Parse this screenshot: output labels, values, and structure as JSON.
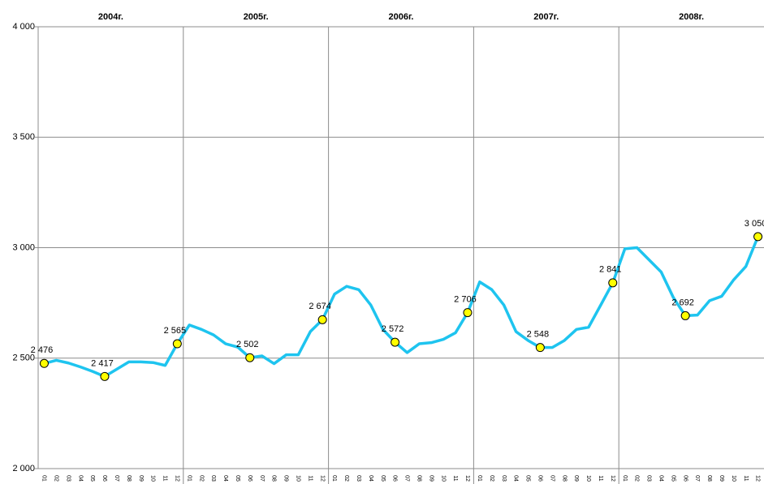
{
  "chart_data": {
    "type": "line",
    "groups": [
      "2004г.",
      "2005г.",
      "2006г.",
      "2007г.",
      "2008г."
    ],
    "categories": [
      "01",
      "02",
      "03",
      "04",
      "05",
      "06",
      "07",
      "08",
      "09",
      "10",
      "11",
      "12",
      "01",
      "02",
      "03",
      "04",
      "05",
      "06",
      "07",
      "08",
      "09",
      "10",
      "11",
      "12",
      "01",
      "02",
      "03",
      "04",
      "05",
      "06",
      "07",
      "08",
      "09",
      "10",
      "11",
      "12",
      "01",
      "02",
      "03",
      "04",
      "05",
      "06",
      "07",
      "08",
      "09",
      "10",
      "11",
      "12",
      "01",
      "02",
      "03",
      "04",
      "05",
      "06",
      "07",
      "08",
      "09",
      "10",
      "11",
      "12"
    ],
    "series": [
      {
        "color": "#1ec4ef",
        "marker_color": "#ffff00",
        "values": [
          2476,
          2490,
          2478,
          2460,
          2440,
          2417,
          2450,
          2483,
          2483,
          2480,
          2467,
          2565,
          2650,
          2630,
          2605,
          2565,
          2550,
          2502,
          2510,
          2475,
          2515,
          2515,
          2620,
          2674,
          2790,
          2825,
          2810,
          2740,
          2630,
          2572,
          2525,
          2565,
          2570,
          2585,
          2615,
          2706,
          2845,
          2810,
          2740,
          2620,
          2580,
          2548,
          2548,
          2580,
          2630,
          2640,
          2740,
          2841,
          2995,
          3000,
          2945,
          2890,
          2775,
          2692,
          2695,
          2760,
          2780,
          2855,
          2915,
          3050
        ],
        "value_labels": [
          "2 476",
          null,
          null,
          null,
          null,
          "2 417",
          null,
          null,
          null,
          null,
          null,
          "2 565",
          null,
          null,
          null,
          null,
          null,
          "2 502",
          null,
          null,
          null,
          null,
          null,
          "2 674",
          null,
          null,
          null,
          null,
          null,
          "2 572",
          null,
          null,
          null,
          null,
          null,
          "2 706",
          null,
          null,
          null,
          null,
          null,
          "2 548",
          null,
          null,
          null,
          null,
          null,
          "2 841",
          null,
          null,
          null,
          null,
          null,
          "2 692",
          null,
          null,
          null,
          null,
          null,
          "3 050"
        ]
      }
    ],
    "ylim": [
      2000,
      4000
    ],
    "yticks": [
      {
        "value": 2000,
        "label": "2 000"
      },
      {
        "value": 2500,
        "label": "2 500"
      },
      {
        "value": 3000,
        "label": "3 000"
      },
      {
        "value": 3500,
        "label": "3 500"
      },
      {
        "value": 4000,
        "label": "4 000"
      }
    ],
    "grid": true
  }
}
